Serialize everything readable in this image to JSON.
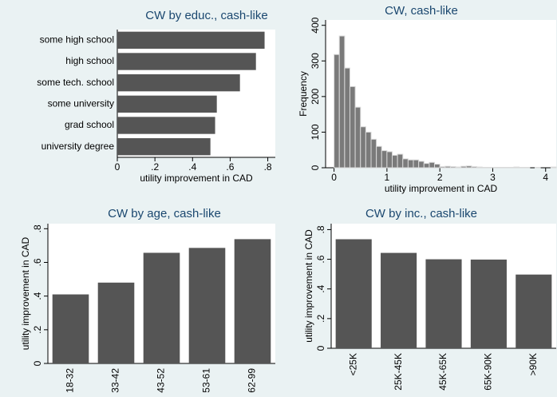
{
  "chart_data": [
    {
      "type": "hbar",
      "title": "CW by educ., cash-like",
      "xlabel": "utility improvement in CAD",
      "categories": [
        "some high school",
        "high school",
        "some tech. school",
        "some university",
        "grad school",
        "university degree"
      ],
      "values": [
        0.783,
        0.737,
        0.652,
        0.529,
        0.52,
        0.495
      ],
      "color": "#555555",
      "xlim": [
        0,
        0.84
      ],
      "xticks": [
        0,
        {
          "value": 0.2,
          "label": ".2"
        },
        {
          "value": 0.4,
          "label": ".4"
        },
        {
          "value": 0.6,
          "label": ".6"
        },
        {
          "value": 0.8,
          "label": ".8"
        }
      ]
    },
    {
      "type": "histogram",
      "title": "CW, cash-like",
      "xlabel": "utility improvement in CAD",
      "ylabel": "Frequency",
      "bins": [
        0,
        0.1,
        0.2,
        0.3,
        0.4,
        0.5,
        0.6,
        0.7,
        0.8,
        0.9,
        1,
        1.1,
        1.2,
        1.3,
        1.4,
        1.5,
        1.6,
        1.7,
        1.8,
        1.9,
        2,
        2.1,
        2.2,
        2.3,
        2.4,
        2.5,
        2.6,
        2.7,
        2.8,
        2.9,
        3,
        3.1,
        3.2,
        3.3,
        3.4,
        3.5,
        3.6,
        3.7,
        3.8,
        3.9,
        4,
        4.1,
        4.2
      ],
      "values": [
        318,
        370,
        280,
        228,
        170,
        115,
        100,
        80,
        60,
        48,
        45,
        35,
        38,
        25,
        22,
        22,
        18,
        12,
        15,
        10,
        3,
        4,
        3,
        2,
        4,
        5,
        3,
        2,
        1,
        1,
        1,
        1,
        1,
        1,
        2,
        1,
        1,
        0,
        1,
        0,
        0,
        2
      ],
      "color": "#7a7a7a",
      "xlim": [
        -0.16,
        4.2
      ],
      "xticks": [
        0,
        1,
        2,
        3,
        4
      ],
      "ylim": [
        0,
        415
      ],
      "yticks": [
        0,
        100,
        200,
        300,
        400
      ]
    },
    {
      "type": "bar",
      "title": "CW by age, cash-like",
      "ylabel": "utility improvement in CAD",
      "categories": [
        "18-32",
        "33-42",
        "43-52",
        "53-61",
        "62-99"
      ],
      "values": [
        0.41,
        0.48,
        0.657,
        0.686,
        0.738
      ],
      "color": "#555555",
      "ylim": [
        0,
        0.83
      ],
      "yticks": [
        0,
        {
          "value": 0.2,
          "label": ".2"
        },
        {
          "value": 0.4,
          "label": ".4"
        },
        {
          "value": 0.6,
          "label": ".6"
        },
        {
          "value": 0.8,
          "label": ".8"
        }
      ]
    },
    {
      "type": "bar",
      "title": "CW by inc., cash-like",
      "ylabel": "utility improvement in CAD",
      "categories": [
        "<25K",
        "25K-45K",
        "45K-65K",
        "65K-90K",
        ">90K"
      ],
      "values": [
        0.735,
        0.643,
        0.6,
        0.598,
        0.497
      ],
      "color": "#555555",
      "ylim": [
        0,
        0.84
      ],
      "yticks": [
        0,
        {
          "value": 0.2,
          "label": ".2"
        },
        {
          "value": 0.4,
          "label": ".4"
        },
        {
          "value": 0.6,
          "label": ".6"
        },
        {
          "value": 0.8,
          "label": ".8"
        }
      ]
    }
  ]
}
